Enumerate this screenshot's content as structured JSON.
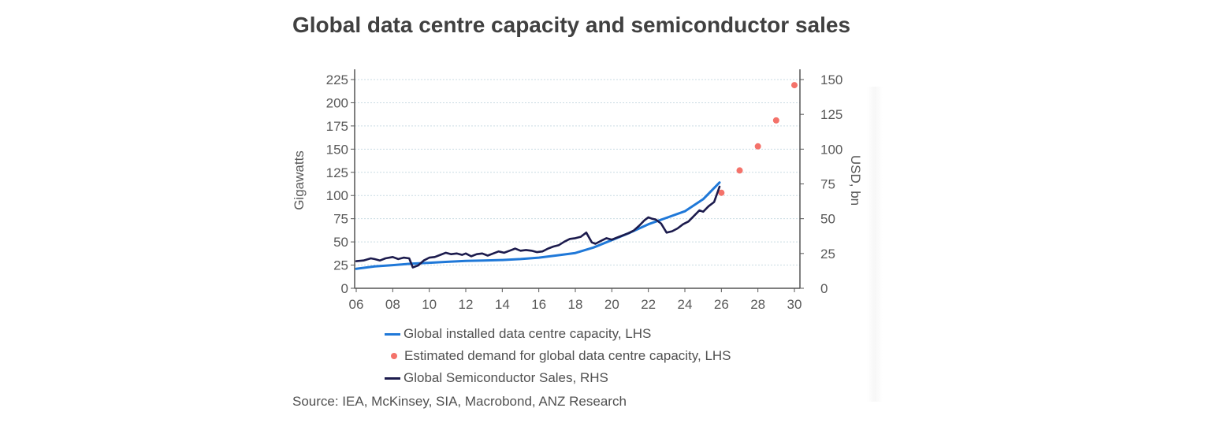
{
  "chart_data": {
    "type": "line",
    "title": "Global data centre capacity and semiconductor sales",
    "xlabel": "",
    "ylabel": "Gigawatts",
    "ylabel_right": "USD, bn",
    "xlim": [
      2006,
      2030
    ],
    "ylim": [
      0,
      225
    ],
    "ylim_right": [
      0,
      150
    ],
    "x_ticks": [
      "06",
      "08",
      "10",
      "12",
      "14",
      "16",
      "18",
      "20",
      "22",
      "24",
      "26",
      "28",
      "30"
    ],
    "y_ticks_left": [
      "0",
      "25",
      "50",
      "75",
      "100",
      "125",
      "150",
      "175",
      "200",
      "225"
    ],
    "y_ticks_right": [
      "0",
      "25",
      "50",
      "75",
      "100",
      "125",
      "150"
    ],
    "grid": true,
    "legend_position": "bottom",
    "series": [
      {
        "name": "Global installed data centre capacity, LHS",
        "kind": "line",
        "axis": "left",
        "color": "#1f78d8",
        "x": [
          2006,
          2007,
          2008,
          2009,
          2010,
          2011,
          2012,
          2013,
          2014,
          2015,
          2016,
          2017,
          2018,
          2019,
          2020,
          2021,
          2022,
          2023,
          2024,
          2025,
          2025.9
        ],
        "values": [
          21,
          23.5,
          25,
          26.5,
          27.5,
          28.5,
          29.5,
          30,
          30.5,
          31.5,
          33,
          35.5,
          38,
          44,
          52,
          60,
          69,
          76,
          83,
          96,
          114
        ]
      },
      {
        "name": "Estimated demand for global data centre capacity, LHS",
        "kind": "scatter",
        "axis": "left",
        "color": "#f4726a",
        "x": [
          2026,
          2027,
          2028,
          2029,
          2030
        ],
        "values": [
          103,
          127,
          153,
          181,
          219
        ]
      },
      {
        "name": "Global Semiconductor Sales, RHS",
        "kind": "line",
        "axis": "right",
        "color": "#1c1b4d",
        "x": [
          2006,
          2006.4,
          2006.8,
          2007.0,
          2007.3,
          2007.6,
          2008.0,
          2008.3,
          2008.6,
          2008.9,
          2009.1,
          2009.4,
          2009.7,
          2010.0,
          2010.3,
          2010.6,
          2010.9,
          2011.2,
          2011.5,
          2011.8,
          2012.0,
          2012.3,
          2012.6,
          2012.9,
          2013.2,
          2013.5,
          2013.8,
          2014.1,
          2014.4,
          2014.7,
          2015.0,
          2015.3,
          2015.6,
          2015.9,
          2016.2,
          2016.5,
          2016.8,
          2017.1,
          2017.4,
          2017.7,
          2018.0,
          2018.3,
          2018.6,
          2018.9,
          2019.1,
          2019.4,
          2019.7,
          2020.0,
          2020.3,
          2020.6,
          2020.9,
          2021.2,
          2021.5,
          2021.8,
          2022.0,
          2022.2,
          2022.4,
          2022.7,
          2023.0,
          2023.3,
          2023.6,
          2023.9,
          2024.2,
          2024.5,
          2024.8,
          2025.0,
          2025.3,
          2025.6,
          2025.9
        ],
        "values": [
          19.5,
          20,
          21.5,
          21,
          20,
          21.5,
          22.5,
          21,
          22,
          21.5,
          15,
          16.5,
          20,
          22,
          22.5,
          24,
          25.5,
          24.5,
          25,
          24,
          25,
          23,
          24.5,
          25,
          23.5,
          25,
          26.5,
          25.5,
          27,
          28.5,
          27,
          27.5,
          27,
          26,
          26.5,
          28.5,
          30,
          31,
          33.5,
          35.5,
          36,
          37,
          40,
          33,
          32,
          34,
          36,
          35,
          36.5,
          38,
          39.5,
          41.5,
          45,
          49,
          51,
          50,
          49.5,
          46.5,
          40,
          41,
          43,
          46,
          48,
          52,
          56,
          55,
          59,
          62,
          73
        ]
      }
    ],
    "legend": [
      "Global installed data centre capacity, LHS",
      "Estimated demand for global data centre capacity, LHS",
      "Global Semiconductor Sales, RHS"
    ],
    "source": "Source: IEA, McKinsey, SIA, Macrobond, ANZ Research"
  }
}
